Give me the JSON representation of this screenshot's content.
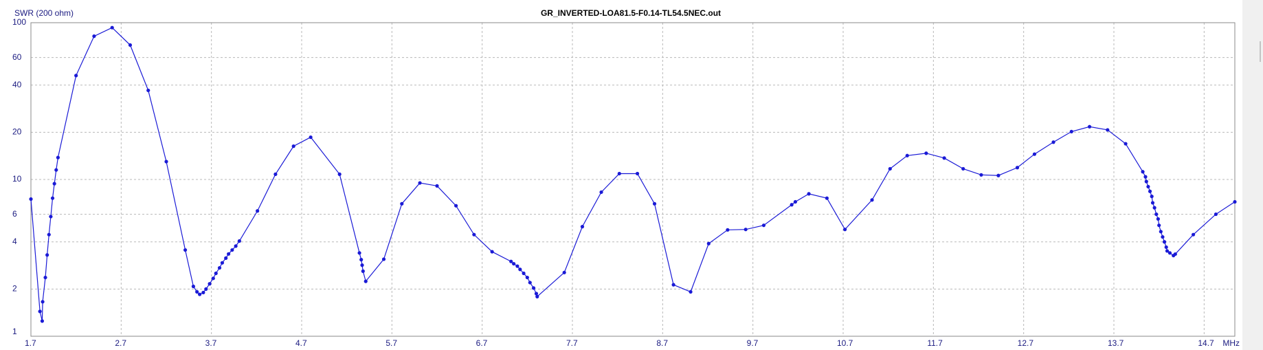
{
  "chart_data": {
    "type": "line",
    "title": "GR_INVERTED-LOA81.5-F0.14-TL54.5NEC.out",
    "y_label": "SWR (200 ohm)",
    "x_label": "MHz",
    "yscale": "log",
    "grid": true,
    "color": "#1a1ad6",
    "markers": true,
    "xlim": [
      1.7,
      15.04
    ],
    "xticks": [
      1.7,
      2.7,
      3.7,
      4.7,
      5.7,
      6.7,
      7.7,
      8.7,
      9.7,
      10.7,
      11.7,
      12.7,
      13.7,
      14.7
    ],
    "ylim": [
      1,
      100
    ],
    "yticks": [
      1,
      2,
      4,
      6,
      10,
      20,
      40,
      60,
      100
    ],
    "x": [
      1.7,
      1.8,
      1.825,
      1.83,
      1.86,
      1.88,
      1.9,
      1.92,
      1.94,
      1.96,
      1.98,
      2.0,
      2.2,
      2.4,
      2.6,
      2.8,
      3.0,
      3.2,
      3.41,
      3.5,
      3.54,
      3.57,
      3.61,
      3.64,
      3.68,
      3.72,
      3.75,
      3.79,
      3.82,
      3.86,
      3.89,
      3.93,
      3.97,
      4.01,
      4.21,
      4.41,
      4.61,
      4.8,
      5.12,
      5.34,
      5.36,
      5.37,
      5.38,
      5.41,
      5.61,
      5.81,
      6.01,
      6.2,
      6.41,
      6.61,
      6.81,
      7.02,
      7.05,
      7.09,
      7.12,
      7.16,
      7.2,
      7.23,
      7.27,
      7.3,
      7.31,
      7.61,
      7.81,
      8.02,
      8.22,
      8.42,
      8.61,
      8.82,
      9.01,
      9.21,
      9.42,
      9.62,
      9.82,
      10.13,
      10.17,
      10.32,
      10.52,
      10.72,
      11.02,
      11.22,
      11.41,
      11.62,
      11.82,
      12.03,
      12.23,
      12.42,
      12.63,
      12.82,
      13.03,
      13.23,
      13.43,
      13.63,
      13.83,
      14.02,
      14.05,
      14.06,
      14.08,
      14.1,
      14.12,
      14.13,
      14.15,
      14.17,
      14.19,
      14.2,
      14.22,
      14.24,
      14.26,
      14.28,
      14.29,
      14.32,
      14.36,
      14.38,
      14.58,
      14.83,
      15.04
    ],
    "values": [
      7.5,
      1.44,
      1.25,
      1.66,
      2.37,
      3.3,
      4.45,
      5.8,
      7.6,
      9.4,
      11.5,
      13.8,
      46,
      82,
      93,
      72,
      37,
      13,
      3.55,
      2.08,
      1.92,
      1.85,
      1.9,
      2.0,
      2.16,
      2.34,
      2.52,
      2.73,
      2.94,
      3.15,
      3.35,
      3.55,
      3.76,
      4.05,
      6.3,
      10.8,
      16.3,
      18.6,
      10.8,
      3.4,
      3.08,
      2.84,
      2.6,
      2.24,
      3.1,
      7.0,
      9.5,
      9.1,
      6.8,
      4.45,
      3.46,
      3.0,
      2.9,
      2.8,
      2.67,
      2.52,
      2.37,
      2.2,
      2.03,
      1.87,
      1.79,
      2.55,
      5.0,
      8.3,
      10.9,
      10.9,
      7.0,
      2.13,
      1.92,
      3.9,
      4.77,
      4.8,
      5.1,
      6.9,
      7.2,
      8.1,
      7.6,
      4.8,
      7.4,
      11.7,
      14.2,
      14.7,
      13.7,
      11.7,
      10.7,
      10.6,
      11.9,
      14.5,
      17.3,
      20.2,
      21.7,
      20.7,
      16.9,
      11.2,
      10.4,
      9.7,
      9.0,
      8.4,
      7.8,
      7.1,
      6.6,
      6.0,
      5.6,
      5.1,
      4.65,
      4.3,
      4.0,
      3.7,
      3.5,
      3.4,
      3.27,
      3.34,
      4.45,
      6.0,
      7.2
    ]
  }
}
